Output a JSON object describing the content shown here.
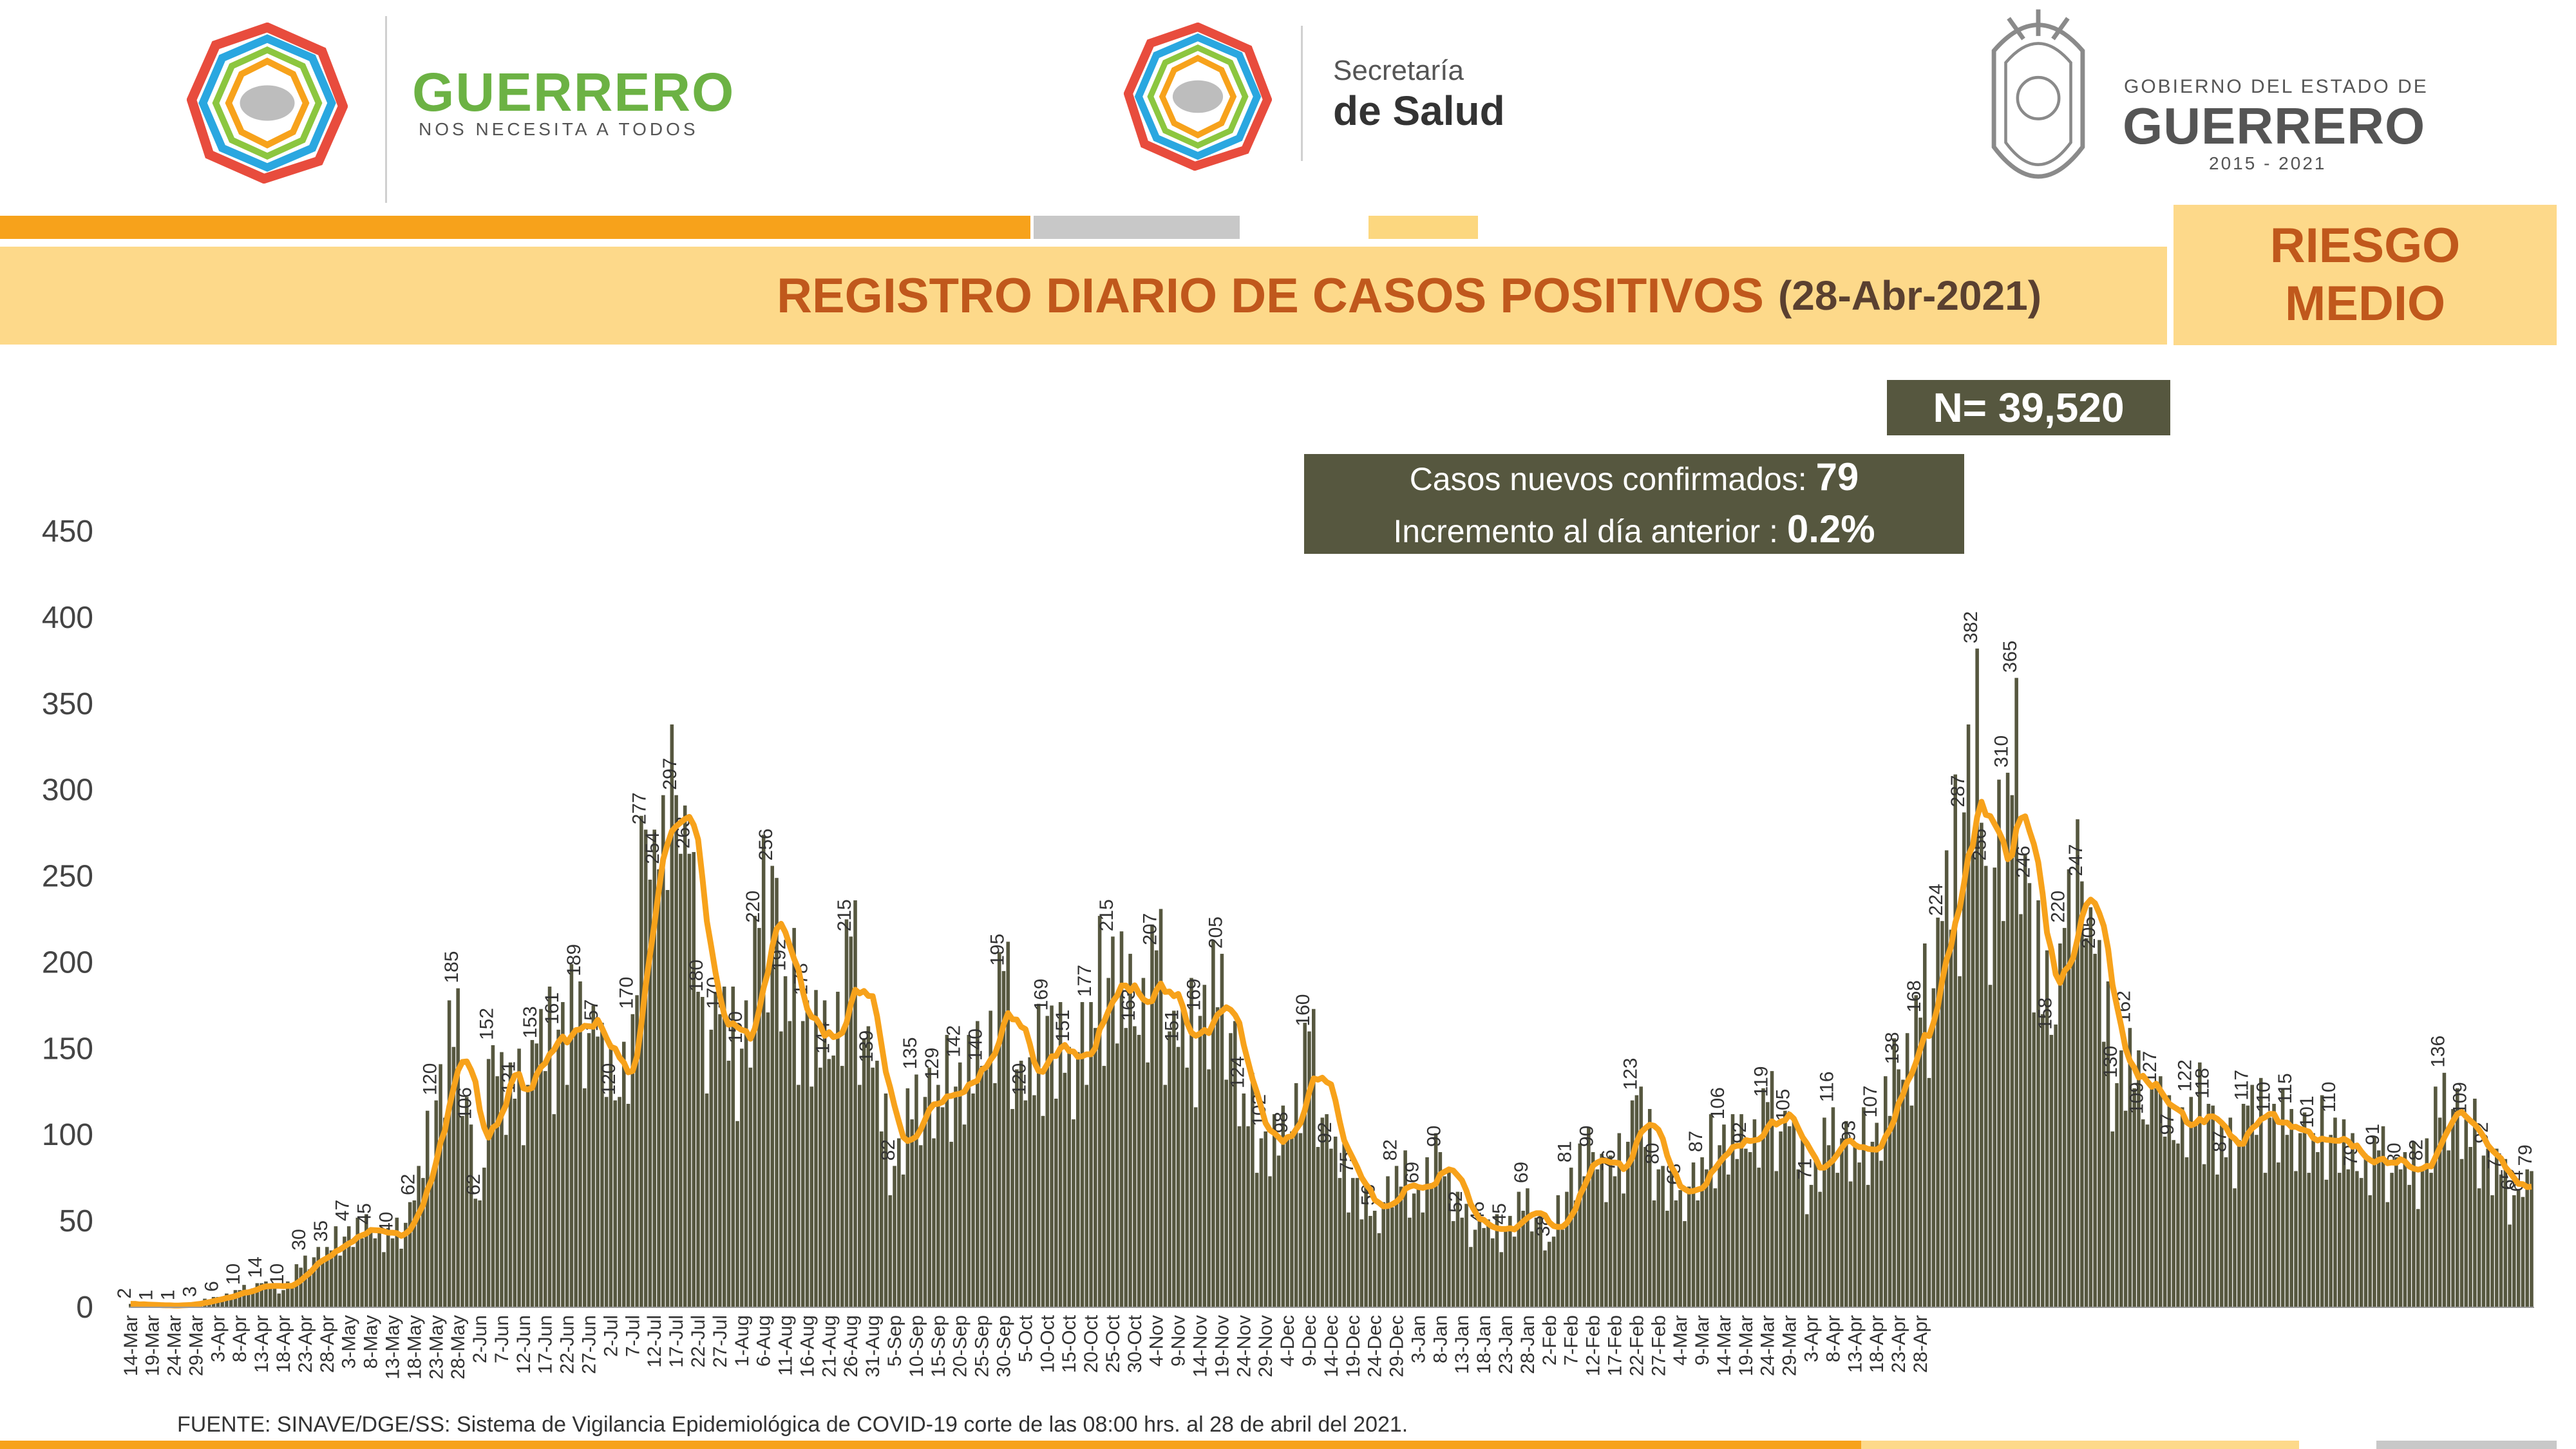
{
  "header": {
    "guerrero_title": "GUERRERO",
    "guerrero_subtitle": "NOS NECESITA A TODOS",
    "secretaria_line1": "Secretaría",
    "secretaria_line2": "de Salud",
    "gobierno_line1": "GOBIERNO DEL ESTADO DE",
    "gobierno_line2": "GUERRERO",
    "gobierno_years": "2015 - 2021"
  },
  "title": {
    "main": "REGISTRO DIARIO DE CASOS POSITIVOS",
    "date": "(28-Abr-2021)"
  },
  "risk": {
    "line1": "RIESGO",
    "line2": "MEDIO"
  },
  "total": "N= 39,520",
  "info": {
    "new_cases_label": "Casos nuevos confirmados:",
    "new_cases_value": "79",
    "increment_label": "Incremento al día anterior :",
    "increment_value": "0.2%"
  },
  "source": "FUENTE: SINAVE/DGE/SS: Sistema de Vigilancia Epidemiológica de COVID-19 corte de las 08:00 hrs. al 28 de abril del 2021.",
  "colors": {
    "bars": "#56573f",
    "line": "#f7a21b",
    "accent": "#c0581c"
  },
  "chart_data": {
    "type": "bar",
    "start_date": "14-Mar-2020",
    "ylim": [
      0,
      450
    ],
    "yticks": [
      0,
      50,
      100,
      150,
      200,
      250,
      300,
      350,
      400,
      450
    ],
    "x_tick_labels": [
      "14-Mar",
      "19-Mar",
      "24-Mar",
      "29-Mar",
      "3-Apr",
      "8-Apr",
      "13-Apr",
      "18-Apr",
      "23-Apr",
      "28-Apr",
      "3-May",
      "8-May",
      "13-May",
      "18-May",
      "23-May",
      "28-May",
      "2-Jun",
      "7-Jun",
      "12-Jun",
      "17-Jun",
      "22-Jun",
      "27-Jun",
      "2-Jul",
      "7-Jul",
      "12-Jul",
      "17-Jul",
      "22-Jul",
      "27-Jul",
      "1-Aug",
      "6-Aug",
      "11-Aug",
      "16-Aug",
      "21-Aug",
      "26-Aug",
      "31-Aug",
      "5-Sep",
      "10-Sep",
      "15-Sep",
      "20-Sep",
      "25-Sep",
      "30-Sep",
      "5-Oct",
      "10-Oct",
      "15-Oct",
      "20-Oct",
      "25-Oct",
      "30-Oct",
      "4-Nov",
      "9-Nov",
      "14-Nov",
      "19-Nov",
      "24-Nov",
      "29-Nov",
      "4-Dec",
      "9-Dec",
      "14-Dec",
      "19-Dec",
      "24-Dec",
      "29-Dec",
      "3-Jan",
      "8-Jan",
      "13-Jan",
      "18-Jan",
      "23-Jan",
      "28-Jan",
      "2-Feb",
      "7-Feb",
      "12-Feb",
      "17-Feb",
      "22-Feb",
      "27-Feb",
      "4-Mar",
      "9-Mar",
      "14-Mar",
      "19-Mar",
      "24-Mar",
      "29-Mar",
      "3-Apr",
      "8-Apr",
      "13-Apr",
      "18-Apr",
      "23-Apr",
      "28-Apr"
    ],
    "anchors": [
      [
        0,
        2
      ],
      [
        5,
        1
      ],
      [
        10,
        1
      ],
      [
        15,
        3
      ],
      [
        20,
        6
      ],
      [
        25,
        10
      ],
      [
        30,
        14
      ],
      [
        35,
        10
      ],
      [
        40,
        30
      ],
      [
        45,
        35
      ],
      [
        50,
        47
      ],
      [
        55,
        45
      ],
      [
        60,
        40
      ],
      [
        65,
        62
      ],
      [
        70,
        120
      ],
      [
        75,
        185
      ],
      [
        78,
        106
      ],
      [
        80,
        62
      ],
      [
        83,
        152
      ],
      [
        88,
        121
      ],
      [
        93,
        153
      ],
      [
        98,
        161
      ],
      [
        103,
        189
      ],
      [
        107,
        157
      ],
      [
        111,
        120
      ],
      [
        115,
        170
      ],
      [
        118,
        277
      ],
      [
        121,
        254
      ],
      [
        125,
        297
      ],
      [
        128,
        263
      ],
      [
        131,
        180
      ],
      [
        135,
        170
      ],
      [
        140,
        150
      ],
      [
        144,
        220
      ],
      [
        147,
        256
      ],
      [
        150,
        192
      ],
      [
        155,
        178
      ],
      [
        160,
        144
      ],
      [
        165,
        215
      ],
      [
        170,
        139
      ],
      [
        175,
        82
      ],
      [
        180,
        135
      ],
      [
        185,
        129
      ],
      [
        190,
        142
      ],
      [
        195,
        140
      ],
      [
        200,
        195
      ],
      [
        205,
        120
      ],
      [
        210,
        169
      ],
      [
        215,
        151
      ],
      [
        220,
        177
      ],
      [
        225,
        215
      ],
      [
        230,
        163
      ],
      [
        235,
        207
      ],
      [
        240,
        151
      ],
      [
        245,
        169
      ],
      [
        250,
        205
      ],
      [
        255,
        124
      ],
      [
        260,
        102
      ],
      [
        265,
        98
      ],
      [
        270,
        160
      ],
      [
        275,
        92
      ],
      [
        280,
        75
      ],
      [
        285,
        56
      ],
      [
        290,
        82
      ],
      [
        295,
        69
      ],
      [
        300,
        90
      ],
      [
        305,
        52
      ],
      [
        310,
        46
      ],
      [
        315,
        45
      ],
      [
        320,
        69
      ],
      [
        325,
        38
      ],
      [
        330,
        81
      ],
      [
        335,
        90
      ],
      [
        340,
        76
      ],
      [
        345,
        123
      ],
      [
        350,
        80
      ],
      [
        355,
        68
      ],
      [
        360,
        87
      ],
      [
        365,
        106
      ],
      [
        370,
        92
      ],
      [
        375,
        119
      ],
      [
        380,
        105
      ],
      [
        385,
        71
      ],
      [
        390,
        116
      ],
      [
        395,
        93
      ],
      [
        400,
        107
      ],
      [
        405,
        138
      ],
      [
        410,
        168
      ],
      [
        415,
        224
      ],
      [
        420,
        287
      ],
      [
        423,
        382
      ],
      [
        425,
        256
      ],
      [
        430,
        310
      ],
      [
        432,
        365
      ],
      [
        435,
        246
      ],
      [
        440,
        158
      ],
      [
        443,
        220
      ],
      [
        447,
        247
      ],
      [
        450,
        205
      ],
      [
        455,
        130
      ],
      [
        458,
        162
      ],
      [
        461,
        109
      ],
      [
        464,
        127
      ],
      [
        468,
        97
      ],
      [
        472,
        122
      ],
      [
        476,
        118
      ],
      [
        480,
        87
      ],
      [
        485,
        117
      ],
      [
        490,
        110
      ],
      [
        495,
        115
      ],
      [
        500,
        101
      ],
      [
        505,
        110
      ],
      [
        510,
        79
      ],
      [
        515,
        91
      ],
      [
        520,
        80
      ],
      [
        525,
        82
      ],
      [
        530,
        136
      ],
      [
        535,
        109
      ],
      [
        540,
        92
      ],
      [
        543,
        77
      ],
      [
        546,
        65
      ],
      [
        548,
        64
      ],
      [
        550,
        79
      ]
    ],
    "last_value": 79
  }
}
